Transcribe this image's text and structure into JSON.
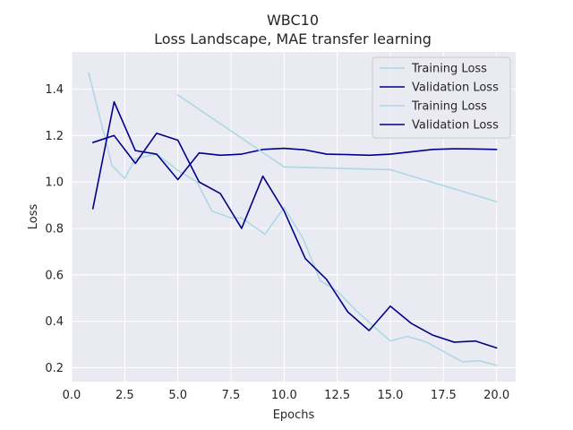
{
  "chart_data": {
    "type": "line",
    "title": "WBC10",
    "subtitle": "Loss Landscape, MAE transfer learning",
    "xlabel": "Epochs",
    "ylabel": "Loss",
    "xlim": [
      0.0,
      20.9
    ],
    "ylim": [
      0.14,
      1.56
    ],
    "xticks": [
      "0.0",
      "2.5",
      "5.0",
      "7.5",
      "10.0",
      "12.5",
      "15.0",
      "17.5",
      "20.0"
    ],
    "yticks": [
      "0.2",
      "0.4",
      "0.6",
      "0.8",
      "1.0",
      "1.2",
      "1.4"
    ],
    "grid": true,
    "legend_position": "top-right",
    "series": [
      {
        "name": "Training Loss",
        "color": "#add8e6",
        "x": [
          0.8,
          1.9,
          2.5,
          3.0,
          4.0,
          5.0,
          5.9,
          6.6,
          7.5,
          8.0,
          9.1,
          10.0,
          10.9,
          11.7,
          12.5,
          13.4,
          14.2,
          15.0,
          15.8,
          16.7,
          17.5,
          18.4,
          19.2,
          20.0
        ],
        "y": [
          1.47,
          1.07,
          1.015,
          1.1,
          1.12,
          1.05,
          1.0,
          0.875,
          0.845,
          0.845,
          0.775,
          0.89,
          0.755,
          0.575,
          0.53,
          0.445,
          0.38,
          0.315,
          0.335,
          0.31,
          0.27,
          0.225,
          0.23,
          0.21
        ]
      },
      {
        "name": "Validation Loss",
        "color": "#00008b",
        "x": [
          1,
          2,
          3,
          4,
          5,
          6,
          7,
          8,
          9,
          10,
          11,
          12,
          13,
          14,
          15,
          16,
          17,
          18,
          19,
          20
        ],
        "y": [
          0.885,
          1.345,
          1.135,
          1.12,
          1.01,
          1.125,
          1.115,
          1.12,
          1.14,
          1.145,
          1.138,
          1.12,
          1.118,
          1.115,
          1.12,
          1.13,
          1.14,
          1.143,
          1.142,
          1.14
        ]
      },
      {
        "name": "Training Loss",
        "color": "#add8e6",
        "x": [
          5,
          10,
          15,
          20
        ],
        "y": [
          1.375,
          1.065,
          1.053,
          0.915
        ]
      },
      {
        "name": "Validation Loss",
        "color": "#00008b",
        "x": [
          1,
          2,
          3,
          4,
          5,
          6,
          7,
          8,
          9,
          10,
          11,
          12,
          13,
          14,
          15,
          16,
          17,
          18,
          19,
          20
        ],
        "y": [
          1.17,
          1.2,
          1.08,
          1.21,
          1.18,
          1.0,
          0.95,
          0.8,
          1.025,
          0.875,
          0.67,
          0.58,
          0.44,
          0.36,
          0.465,
          0.39,
          0.34,
          0.31,
          0.315,
          0.285
        ]
      }
    ]
  }
}
